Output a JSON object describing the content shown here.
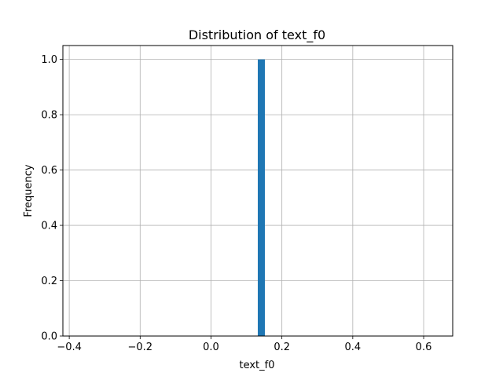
{
  "chart_data": {
    "type": "bar",
    "title": "Distribution of text_f0",
    "xlabel": "text_f0",
    "ylabel": "Frequency",
    "xlim": [
      -0.418,
      0.682
    ],
    "ylim": [
      0,
      1.05
    ],
    "xticks": [
      -0.4,
      -0.2,
      0.0,
      0.2,
      0.4,
      0.6
    ],
    "xtick_labels": [
      "−0.4",
      "−0.2",
      "0.0",
      "0.2",
      "0.4",
      "0.6"
    ],
    "yticks": [
      0.0,
      0.2,
      0.4,
      0.6,
      0.8,
      1.0
    ],
    "ytick_labels": [
      "0.0",
      "0.2",
      "0.4",
      "0.6",
      "0.8",
      "1.0"
    ],
    "grid": true,
    "bars": [
      {
        "x0": 0.132,
        "x1": 0.152,
        "value": 1.0
      }
    ],
    "bar_color": "#1f77b4",
    "grid_color": "#b0b0b0"
  }
}
